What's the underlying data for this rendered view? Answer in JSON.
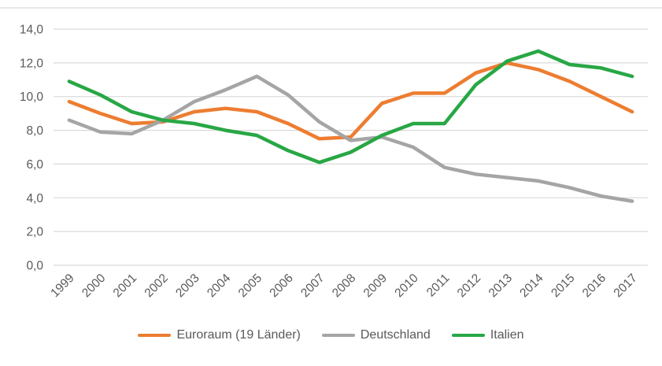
{
  "chart_data": {
    "type": "line",
    "title": "",
    "xlabel": "",
    "ylabel": "",
    "categories": [
      "1999",
      "2000",
      "2001",
      "2002",
      "2003",
      "2004",
      "2005",
      "2006",
      "2007",
      "2008",
      "2009",
      "2010",
      "2011",
      "2012",
      "2013",
      "2014",
      "2015",
      "2016",
      "2017"
    ],
    "series": [
      {
        "name": "Euroraum (19 Länder)",
        "color": "#ED7D31",
        "values": [
          9.7,
          9.0,
          8.4,
          8.5,
          9.1,
          9.3,
          9.1,
          8.4,
          7.5,
          7.6,
          9.6,
          10.2,
          10.2,
          11.4,
          12.0,
          11.6,
          10.9,
          10.0,
          9.1
        ]
      },
      {
        "name": "Deutschland",
        "color": "#A5A5A5",
        "values": [
          8.6,
          7.9,
          7.8,
          8.6,
          9.7,
          10.4,
          11.2,
          10.1,
          8.5,
          7.4,
          7.6,
          7.0,
          5.8,
          5.4,
          5.2,
          5.0,
          4.6,
          4.1,
          3.8
        ]
      },
      {
        "name": "Italien",
        "color": "#28A745",
        "values": [
          10.9,
          10.1,
          9.1,
          8.6,
          8.4,
          8.0,
          7.7,
          6.8,
          6.1,
          6.7,
          7.7,
          8.4,
          8.4,
          10.7,
          12.1,
          12.7,
          11.9,
          11.7,
          11.2
        ]
      }
    ],
    "ylim": [
      0,
      14
    ],
    "y_ticks": [
      0,
      2,
      4,
      6,
      8,
      10,
      12,
      14
    ],
    "y_tick_labels": [
      "0,0",
      "2,0",
      "4,0",
      "6,0",
      "8,0",
      "10,0",
      "12,0",
      "14,0"
    ],
    "grid": true,
    "legend_position": "bottom",
    "axis_text_color": "#595959",
    "gridline_color": "#D9D9D9"
  }
}
